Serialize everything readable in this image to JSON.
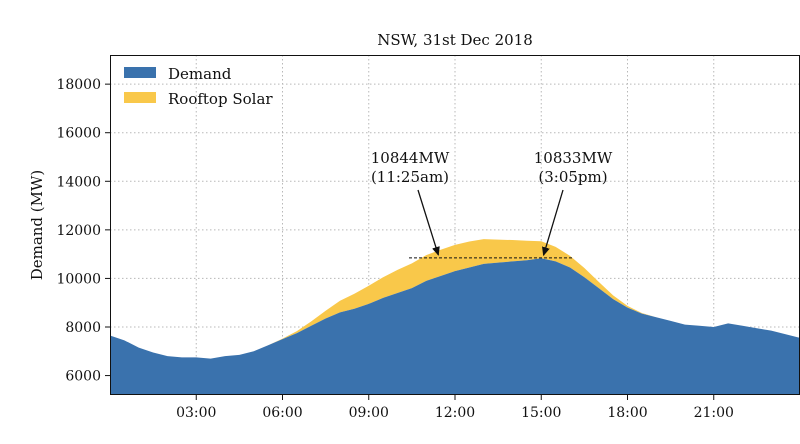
{
  "chart_data": {
    "type": "area",
    "title": "NSW, 31st Dec 2018",
    "xlabel": "",
    "ylabel": "Demand (MW)",
    "xlim": [
      0,
      24
    ],
    "ylim": [
      5200,
      19200
    ],
    "x_ticks": [
      3,
      6,
      9,
      12,
      15,
      18,
      21
    ],
    "x_tick_labels": [
      "03:00",
      "06:00",
      "09:00",
      "12:00",
      "15:00",
      "18:00",
      "21:00"
    ],
    "y_ticks": [
      6000,
      8000,
      10000,
      12000,
      14000,
      16000,
      18000
    ],
    "y_tick_labels": [
      "6000",
      "8000",
      "10000",
      "12000",
      "14000",
      "16000",
      "18000"
    ],
    "grid": true,
    "legend_position": "top-left",
    "x_hours": [
      0,
      0.5,
      1,
      1.5,
      2,
      2.5,
      3,
      3.5,
      4,
      4.5,
      5,
      5.5,
      6,
      6.5,
      7,
      7.5,
      8,
      8.5,
      9,
      9.5,
      10,
      10.5,
      11,
      11.5,
      12,
      12.5,
      13,
      13.5,
      14,
      14.5,
      15,
      15.5,
      16,
      16.5,
      17,
      17.5,
      18,
      18.5,
      19,
      19.5,
      20,
      20.5,
      21,
      21.5,
      22,
      22.5,
      23,
      23.5,
      24
    ],
    "series": [
      {
        "name": "Demand",
        "color": "#3a72ad",
        "values": [
          7650,
          7450,
          7150,
          6950,
          6800,
          6750,
          6750,
          6700,
          6800,
          6850,
          7000,
          7250,
          7500,
          7750,
          8050,
          8350,
          8600,
          8750,
          8950,
          9200,
          9400,
          9600,
          9900,
          10100,
          10300,
          10450,
          10600,
          10650,
          10700,
          10750,
          10833,
          10700,
          10450,
          10050,
          9600,
          9150,
          8800,
          8550,
          8400,
          8250,
          8100,
          8050,
          8000,
          8150,
          8050,
          7950,
          7850,
          7700,
          7550
        ]
      },
      {
        "name": "Rooftop Solar",
        "color": "#f9c84a",
        "values": [
          0,
          0,
          0,
          0,
          0,
          0,
          0,
          0,
          0,
          0,
          0,
          0,
          20,
          80,
          180,
          320,
          480,
          620,
          750,
          850,
          950,
          1020,
          1060,
          1080,
          1080,
          1070,
          1020,
          950,
          880,
          800,
          700,
          600,
          480,
          380,
          260,
          150,
          70,
          25,
          0,
          0,
          0,
          0,
          0,
          0,
          0,
          0,
          0,
          0,
          0
        ]
      }
    ],
    "peak_line": {
      "value": 10844,
      "x_start": 10.4,
      "x_end": 16.1
    },
    "annotations": [
      {
        "text_line1": "10844MW",
        "text_line2": "(11:25am)",
        "target_x": 11.42,
        "target_y": 10844
      },
      {
        "text_line1": "10833MW",
        "text_line2": "(3:05pm)",
        "target_x": 15.08,
        "target_y": 10833
      }
    ]
  }
}
